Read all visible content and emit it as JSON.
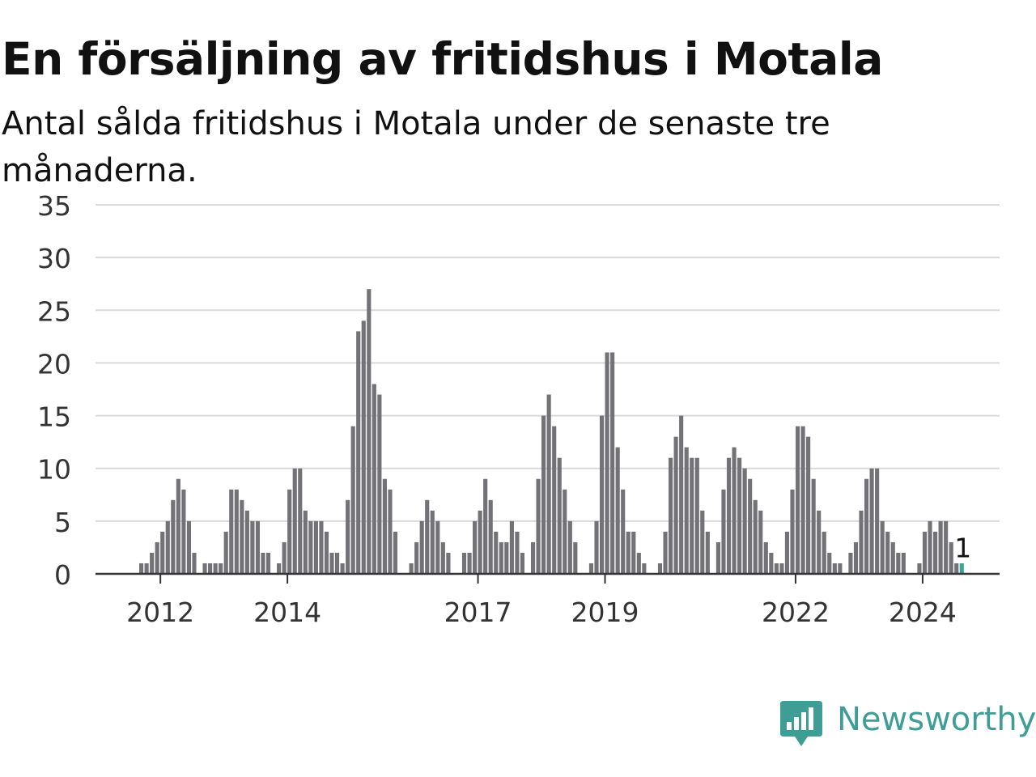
{
  "title": "En försäljning av fritidshus i Motala",
  "subtitle": "Antal sålda fritidshus i Motala under de senaste tre månaderna.",
  "brand": {
    "name": "Newsworthy",
    "icon": "newsworthy-logo-icon",
    "color": "#3e9e96"
  },
  "chart_data": {
    "type": "bar",
    "title": "En försäljning av fritidshus i Motala",
    "xlabel": "",
    "ylabel": "",
    "ylim": [
      0,
      35
    ],
    "yticks": [
      0,
      5,
      10,
      15,
      20,
      25,
      30,
      35
    ],
    "xticks": [
      "2012",
      "2014",
      "2017",
      "2019",
      "2022",
      "2024"
    ],
    "grid": true,
    "bar_color": "#737276",
    "highlight_color": "#3aa39a",
    "highlight_label": "1",
    "series": [
      {
        "year": 2011,
        "values": [
          null,
          null,
          null,
          null,
          null,
          null,
          null,
          null,
          1,
          1,
          2,
          3
        ]
      },
      {
        "year": 2012,
        "values": [
          4,
          5,
          7,
          9,
          8,
          5,
          2,
          0,
          1,
          1,
          1,
          1
        ]
      },
      {
        "year": 2013,
        "values": [
          4,
          8,
          8,
          7,
          6,
          5,
          5,
          2,
          2,
          0,
          1,
          3
        ]
      },
      {
        "year": 2014,
        "values": [
          8,
          10,
          10,
          6,
          5,
          5,
          5,
          4,
          2,
          2,
          1,
          7
        ]
      },
      {
        "year": 2015,
        "values": [
          14,
          23,
          24,
          27,
          18,
          17,
          9,
          8,
          4,
          0,
          0,
          1
        ]
      },
      {
        "year": 2016,
        "values": [
          3,
          5,
          7,
          6,
          5,
          3,
          2,
          0,
          0,
          2,
          2,
          5
        ]
      },
      {
        "year": 2017,
        "values": [
          6,
          9,
          7,
          4,
          3,
          3,
          5,
          4,
          2,
          0,
          3,
          9
        ]
      },
      {
        "year": 2018,
        "values": [
          15,
          17,
          14,
          11,
          8,
          5,
          3,
          0,
          0,
          1,
          5,
          15
        ]
      },
      {
        "year": 2019,
        "values": [
          21,
          21,
          12,
          8,
          4,
          4,
          2,
          1,
          0,
          0,
          1,
          4
        ]
      },
      {
        "year": 2020,
        "values": [
          11,
          13,
          15,
          12,
          11,
          11,
          6,
          4,
          0,
          3,
          8,
          11
        ]
      },
      {
        "year": 2021,
        "values": [
          12,
          11,
          10,
          9,
          7,
          6,
          3,
          2,
          1,
          1,
          4,
          8
        ]
      },
      {
        "year": 2022,
        "values": [
          14,
          14,
          13,
          9,
          6,
          4,
          2,
          1,
          1,
          0,
          2,
          3
        ]
      },
      {
        "year": 2023,
        "values": [
          6,
          9,
          10,
          10,
          5,
          4,
          3,
          2,
          2,
          0,
          0,
          1
        ]
      },
      {
        "year": 2024,
        "values": [
          4,
          5,
          4,
          5,
          5,
          3,
          1,
          null,
          null,
          null,
          null,
          null
        ]
      }
    ]
  }
}
